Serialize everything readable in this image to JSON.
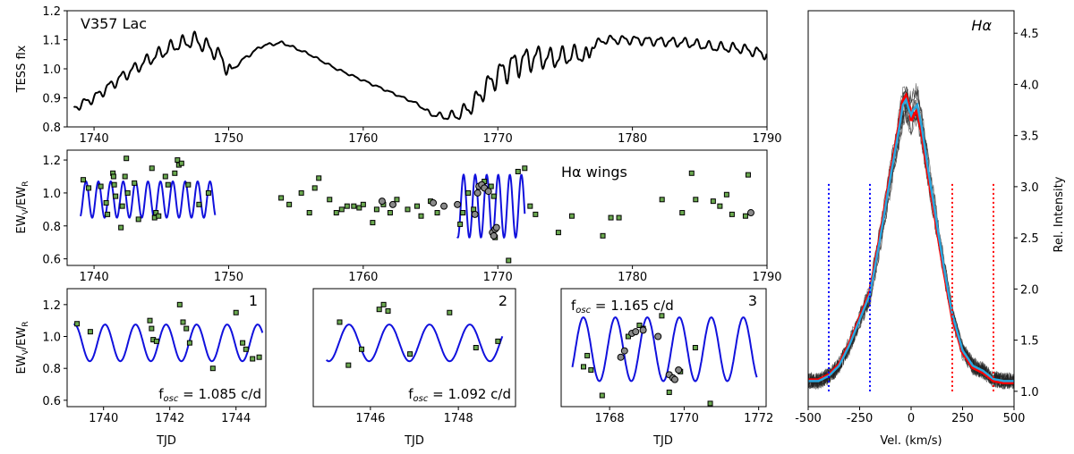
{
  "panels": {
    "top": {
      "ylabel": "TESS flx",
      "annotation": "V357 Lac",
      "xlim": [
        1738,
        1790
      ],
      "ylim": [
        0.8,
        1.2
      ],
      "xticks": [
        1740,
        1750,
        1760,
        1770,
        1780,
        1790
      ],
      "yticks": [
        0.8,
        0.9,
        1.0,
        1.1,
        1.2
      ],
      "yticklabels": [
        "0.8",
        "0.9",
        "1.0",
        "1.1",
        "1.2"
      ]
    },
    "mid": {
      "ylabel": "EW_V/EW_R",
      "annotation": "Hα wings",
      "xlim": [
        1738,
        1790
      ],
      "ylim": [
        0.56,
        1.26
      ],
      "xticks": [
        1740,
        1750,
        1760,
        1770,
        1780,
        1790
      ],
      "yticks": [
        0.6,
        0.8,
        1.0,
        1.2
      ],
      "yticklabels": [
        "0.6",
        "0.8",
        "1.0",
        "1.2"
      ]
    },
    "sub1": {
      "ylabel": "EW_V/EW_R",
      "xlabel": "TJD",
      "number": "1",
      "annotation": "f_osc = 1.085 c/d",
      "xlim": [
        1738.9,
        1744.9
      ],
      "ylim": [
        0.56,
        1.3
      ],
      "xticks": [
        1740,
        1742,
        1744
      ],
      "yticks": [
        0.6,
        0.8,
        1.0,
        1.2
      ],
      "yticklabels": [
        "0.6",
        "0.8",
        "1.0",
        "1.2"
      ]
    },
    "sub2": {
      "xlabel": "TJD",
      "number": "2",
      "annotation": "f_osc = 1.092 c/d",
      "xlim": [
        1744.7,
        1749.3
      ],
      "ylim": [
        0.56,
        1.3
      ],
      "xticks": [
        1746,
        1748
      ]
    },
    "sub3": {
      "xlabel": "TJD",
      "number": "3",
      "annotation": "f_osc = 1.165 c/d",
      "xlim": [
        1766.7,
        1772.2
      ],
      "ylim": [
        0.56,
        1.3
      ],
      "xticks": [
        1768,
        1770,
        1772
      ]
    },
    "spec": {
      "ylabel": "Rel. Intensity",
      "xlabel": "Vel. (km/s)",
      "annotation": "Hα",
      "xlim": [
        -500,
        500
      ],
      "ylim": [
        0.85,
        4.72
      ],
      "xticks": [
        -500,
        -250,
        0,
        250,
        500
      ],
      "yticks": [
        1.0,
        1.5,
        2.0,
        2.5,
        3.0,
        3.5,
        4.0,
        4.5
      ],
      "yticklabels": [
        "1.0",
        "1.5",
        "2.0",
        "2.5",
        "3.0",
        "3.5",
        "4.0",
        "4.5"
      ]
    }
  },
  "colors": {
    "flux": "#000000",
    "fit": "#1111dd",
    "square_fill": "#6aa84f",
    "circle_fill": "#8a8a8a",
    "mean_profile": "#29a8e0",
    "red_profile": "#ff0000",
    "blue_marker": "#0000ff",
    "red_marker": "#ff0000"
  },
  "chart_data": [
    {
      "type": "line",
      "title": "V357 Lac",
      "ylabel": "TESS flx",
      "x_range": [
        1738.5,
        1790
      ],
      "series": [
        {
          "name": "",
          "trend": [
            [
              1738.5,
              0.865
            ],
            [
              1740,
              0.9
            ],
            [
              1742,
              0.97
            ],
            [
              1744,
              1.03
            ],
            [
              1746,
              1.08
            ],
            [
              1747.5,
              1.1
            ],
            [
              1749,
              1.06
            ],
            [
              1750.2,
              0.99
            ],
            [
              1751,
              1.03
            ],
            [
              1752.5,
              1.08
            ],
            [
              1754,
              1.09
            ],
            [
              1756,
              1.05
            ],
            [
              1758,
              1.0
            ],
            [
              1760,
              0.96
            ],
            [
              1762,
              0.92
            ],
            [
              1764,
              0.88
            ],
            [
              1765,
              0.845
            ],
            [
              1766,
              0.835
            ],
            [
              1767,
              0.84
            ],
            [
              1768,
              0.87
            ],
            [
              1769,
              0.93
            ],
            [
              1770,
              0.98
            ],
            [
              1771,
              1.01
            ],
            [
              1772,
              1.03
            ],
            [
              1773,
              1.04
            ],
            [
              1774,
              1.035
            ],
            [
              1776,
              1.05
            ],
            [
              1776.8,
              1.04
            ],
            [
              1777,
              1.08
            ],
            [
              1778,
              1.1
            ],
            [
              1780,
              1.1
            ],
            [
              1782,
              1.095
            ],
            [
              1784,
              1.09
            ],
            [
              1786,
              1.075
            ],
            [
              1788,
              1.07
            ],
            [
              1790,
              1.05
            ]
          ],
          "oscillation_amplitude": [
            [
              1738.5,
              0.012
            ],
            [
              1750,
              0.025
            ],
            [
              1750.5,
              0.003
            ],
            [
              1751.5,
              0.005
            ],
            [
              1756,
              0.003
            ],
            [
              1764,
              0.003
            ],
            [
              1766,
              0.01
            ],
            [
              1769,
              0.03
            ],
            [
              1771,
              0.04
            ],
            [
              1774,
              0.03
            ],
            [
              1776.5,
              0.025
            ],
            [
              1777,
              0.012
            ],
            [
              1790,
              0.015
            ]
          ],
          "oscillation_frequency": 1.1
        }
      ]
    },
    {
      "type": "scatter",
      "ylabel": "EW_V/EW_R",
      "series": [
        {
          "name": "",
          "marker": "square",
          "points": [
            [
              1739.2,
              1.08
            ],
            [
              1739.6,
              1.03
            ],
            [
              1740.5,
              1.04
            ],
            [
              1740.9,
              0.94
            ],
            [
              1741.0,
              0.87
            ],
            [
              1741.4,
              1.12
            ],
            [
              1741.45,
              1.1
            ],
            [
              1741.5,
              1.05
            ],
            [
              1741.6,
              0.98
            ],
            [
              1742.0,
              0.79
            ],
            [
              1742.1,
              0.92
            ],
            [
              1742.3,
              1.1
            ],
            [
              1742.4,
              1.21
            ],
            [
              1742.5,
              1.0
            ],
            [
              1743.0,
              1.06
            ],
            [
              1743.3,
              0.84
            ],
            [
              1744.3,
              1.15
            ],
            [
              1744.5,
              0.85
            ],
            [
              1744.6,
              0.88
            ],
            [
              1744.8,
              0.86
            ],
            [
              1745.3,
              1.1
            ],
            [
              1745.5,
              1.05
            ],
            [
              1746.0,
              1.12
            ],
            [
              1746.2,
              1.2
            ],
            [
              1746.3,
              1.17
            ],
            [
              1746.5,
              1.18
            ],
            [
              1747.0,
              1.05
            ],
            [
              1747.8,
              0.93
            ],
            [
              1748.5,
              1.0
            ],
            [
              1753.9,
              0.97
            ],
            [
              1754.5,
              0.93
            ],
            [
              1755.4,
              1.0
            ],
            [
              1756.0,
              0.88
            ],
            [
              1756.4,
              1.03
            ],
            [
              1756.7,
              1.09
            ],
            [
              1757.5,
              0.96
            ],
            [
              1758.0,
              0.88
            ],
            [
              1758.4,
              0.9
            ],
            [
              1758.8,
              0.92
            ],
            [
              1759.3,
              0.92
            ],
            [
              1759.7,
              0.91
            ],
            [
              1760.0,
              0.93
            ],
            [
              1760.7,
              0.82
            ],
            [
              1761.0,
              0.9
            ],
            [
              1761.5,
              0.93
            ],
            [
              1762.0,
              0.88
            ],
            [
              1762.5,
              0.96
            ],
            [
              1763.3,
              0.9
            ],
            [
              1764.0,
              0.92
            ],
            [
              1764.3,
              0.86
            ],
            [
              1765.0,
              0.95
            ],
            [
              1765.5,
              0.88
            ],
            [
              1767.2,
              0.81
            ],
            [
              1767.4,
              0.88
            ],
            [
              1767.8,
              1.0
            ],
            [
              1768.2,
              0.9
            ],
            [
              1769.0,
              1.07
            ],
            [
              1769.5,
              1.04
            ],
            [
              1769.7,
              0.98
            ],
            [
              1769.8,
              0.73
            ],
            [
              1770.8,
              0.59
            ],
            [
              1771.5,
              1.13
            ],
            [
              1772.0,
              1.15
            ],
            [
              1772.4,
              0.92
            ],
            [
              1772.8,
              0.87
            ],
            [
              1774.5,
              0.76
            ],
            [
              1775.5,
              0.86
            ],
            [
              1777.8,
              0.74
            ],
            [
              1778.4,
              0.85
            ],
            [
              1779.0,
              0.85
            ],
            [
              1782.2,
              0.96
            ],
            [
              1783.7,
              0.88
            ],
            [
              1784.4,
              1.12
            ],
            [
              1784.7,
              0.96
            ],
            [
              1786.0,
              0.95
            ],
            [
              1786.5,
              0.92
            ],
            [
              1787.0,
              0.99
            ],
            [
              1787.4,
              0.87
            ],
            [
              1788.4,
              0.86
            ],
            [
              1788.6,
              1.11
            ]
          ]
        },
        {
          "name": "",
          "marker": "circle",
          "points": [
            [
              1761.4,
              0.95
            ],
            [
              1762.2,
              0.93
            ],
            [
              1765.2,
              0.94
            ],
            [
              1766.0,
              0.92
            ],
            [
              1767.0,
              0.93
            ],
            [
              1768.3,
              0.87
            ],
            [
              1768.5,
              1.0
            ],
            [
              1768.6,
              1.04
            ],
            [
              1768.8,
              1.05
            ],
            [
              1769.0,
              1.03
            ],
            [
              1769.3,
              1.01
            ],
            [
              1769.6,
              0.76
            ],
            [
              1769.7,
              0.74
            ],
            [
              1769.8,
              0.78
            ],
            [
              1769.9,
              0.79
            ],
            [
              1788.8,
              0.88
            ]
          ]
        }
      ],
      "fits": [
        {
          "name": "",
          "range": [
            1739,
            1749
          ],
          "freq": 1.085,
          "mean": 0.96,
          "amp": 0.11
        },
        {
          "name": "",
          "range": [
            1767,
            1772
          ],
          "freq": 1.165,
          "mean": 0.92,
          "amp": 0.19
        }
      ]
    },
    {
      "type": "scatter",
      "panel": "1",
      "xlabel": "TJD",
      "ylabel": "EW_V/EW_R",
      "fit": {
        "name": "",
        "range": [
          1739.1,
          1744.8
        ],
        "freq": 1.085,
        "mean": 0.96,
        "amp": 0.115,
        "phase": 0.3
      },
      "squares": [
        [
          1739.2,
          1.08
        ],
        [
          1739.6,
          1.03
        ],
        [
          1741.4,
          1.1
        ],
        [
          1741.45,
          1.05
        ],
        [
          1741.5,
          0.98
        ],
        [
          1741.6,
          0.97
        ],
        [
          1742.3,
          1.2
        ],
        [
          1742.4,
          1.09
        ],
        [
          1742.5,
          1.05
        ],
        [
          1742.6,
          0.96
        ],
        [
          1743.3,
          0.8
        ],
        [
          1744.0,
          1.15
        ],
        [
          1744.2,
          0.96
        ],
        [
          1744.3,
          0.92
        ],
        [
          1744.5,
          0.86
        ],
        [
          1744.7,
          0.87
        ]
      ]
    },
    {
      "type": "scatter",
      "panel": "2",
      "xlabel": "TJD",
      "fit": {
        "name": "",
        "range": [
          1745.0,
          1749.0
        ],
        "freq": 1.092,
        "mean": 0.96,
        "amp": 0.115,
        "phase": 0.15
      },
      "squares": [
        [
          1745.3,
          1.09
        ],
        [
          1745.5,
          0.82
        ],
        [
          1745.8,
          0.92
        ],
        [
          1746.2,
          1.17
        ],
        [
          1746.3,
          1.2
        ],
        [
          1746.4,
          1.16
        ],
        [
          1746.9,
          0.89
        ],
        [
          1747.8,
          1.15
        ],
        [
          1748.4,
          0.93
        ],
        [
          1748.9,
          0.97
        ]
      ]
    },
    {
      "type": "scatter",
      "panel": "3",
      "xlabel": "TJD",
      "annotation": "f_osc = 1.165 c/d",
      "fit": {
        "name": "",
        "range": [
          1767.0,
          1771.95
        ],
        "freq": 1.165,
        "mean": 0.92,
        "amp": 0.2,
        "phase": 0.35
      },
      "squares": [
        [
          1767.3,
          0.81
        ],
        [
          1767.4,
          0.88
        ],
        [
          1767.5,
          0.79
        ],
        [
          1767.8,
          0.63
        ],
        [
          1768.5,
          1.0
        ],
        [
          1768.8,
          1.07
        ],
        [
          1768.9,
          1.05
        ],
        [
          1769.4,
          1.13
        ],
        [
          1769.6,
          0.65
        ],
        [
          1769.9,
          0.78
        ],
        [
          1770.3,
          0.93
        ],
        [
          1770.7,
          0.58
        ]
      ],
      "circles": [
        [
          1768.3,
          0.87
        ],
        [
          1768.4,
          0.91
        ],
        [
          1768.6,
          1.02
        ],
        [
          1768.7,
          1.03
        ],
        [
          1768.9,
          1.04
        ],
        [
          1769.3,
          1.0
        ],
        [
          1769.6,
          0.76
        ],
        [
          1769.7,
          0.74
        ],
        [
          1769.75,
          0.73
        ],
        [
          1769.85,
          0.79
        ]
      ]
    },
    {
      "type": "line",
      "title": "Hα",
      "xlabel": "Vel. (km/s)",
      "ylabel": "Rel. Intensity",
      "profile": [
        [
          -500,
          1.1
        ],
        [
          -450,
          1.1
        ],
        [
          -400,
          1.15
        ],
        [
          -350,
          1.25
        ],
        [
          -300,
          1.45
        ],
        [
          -250,
          1.7
        ],
        [
          -200,
          1.95
        ],
        [
          -150,
          2.5
        ],
        [
          -100,
          3.1
        ],
        [
          -60,
          3.55
        ],
        [
          -40,
          3.8
        ],
        [
          -25,
          3.85
        ],
        [
          -10,
          3.75
        ],
        [
          0,
          3.7
        ],
        [
          10,
          3.75
        ],
        [
          30,
          3.8
        ],
        [
          50,
          3.6
        ],
        [
          80,
          3.2
        ],
        [
          120,
          2.7
        ],
        [
          160,
          2.2
        ],
        [
          200,
          1.75
        ],
        [
          250,
          1.4
        ],
        [
          300,
          1.25
        ],
        [
          350,
          1.2
        ],
        [
          400,
          1.12
        ],
        [
          450,
          1.1
        ],
        [
          500,
          1.1
        ]
      ],
      "markers": {
        "blue": [
          -400,
          -200
        ],
        "red": [
          200,
          400
        ]
      }
    }
  ]
}
